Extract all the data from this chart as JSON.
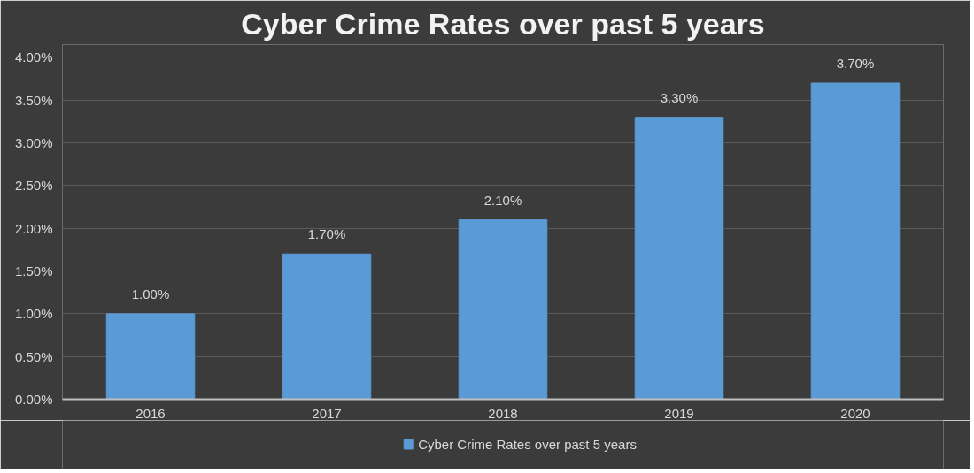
{
  "chart_data": {
    "type": "bar",
    "title": "Cyber Crime Rates over past 5 years",
    "categories": [
      "2016",
      "2017",
      "2018",
      "2019",
      "2020"
    ],
    "series": [
      {
        "name": "Cyber Crime Rates over past 5 years",
        "color": "#5b9bd5",
        "values": [
          1.0,
          1.7,
          2.1,
          3.3,
          3.7
        ],
        "value_labels": [
          "1.00%",
          "1.70%",
          "2.10%",
          "3.30%",
          "3.70%"
        ]
      }
    ],
    "ylim": [
      0,
      4.15
    ],
    "yticks": [
      {
        "value": 0,
        "label": "0.00%"
      },
      {
        "value": 0.5,
        "label": "0.50%"
      },
      {
        "value": 1,
        "label": "1.00%"
      },
      {
        "value": 1.5,
        "label": "1.50%"
      },
      {
        "value": 2,
        "label": "2.00%"
      },
      {
        "value": 2.5,
        "label": "2.50%"
      },
      {
        "value": 3,
        "label": "3.00%"
      },
      {
        "value": 3.5,
        "label": "3.50%"
      },
      {
        "value": 4,
        "label": "4.00%"
      }
    ],
    "grid": "y",
    "legend": "bottom"
  }
}
